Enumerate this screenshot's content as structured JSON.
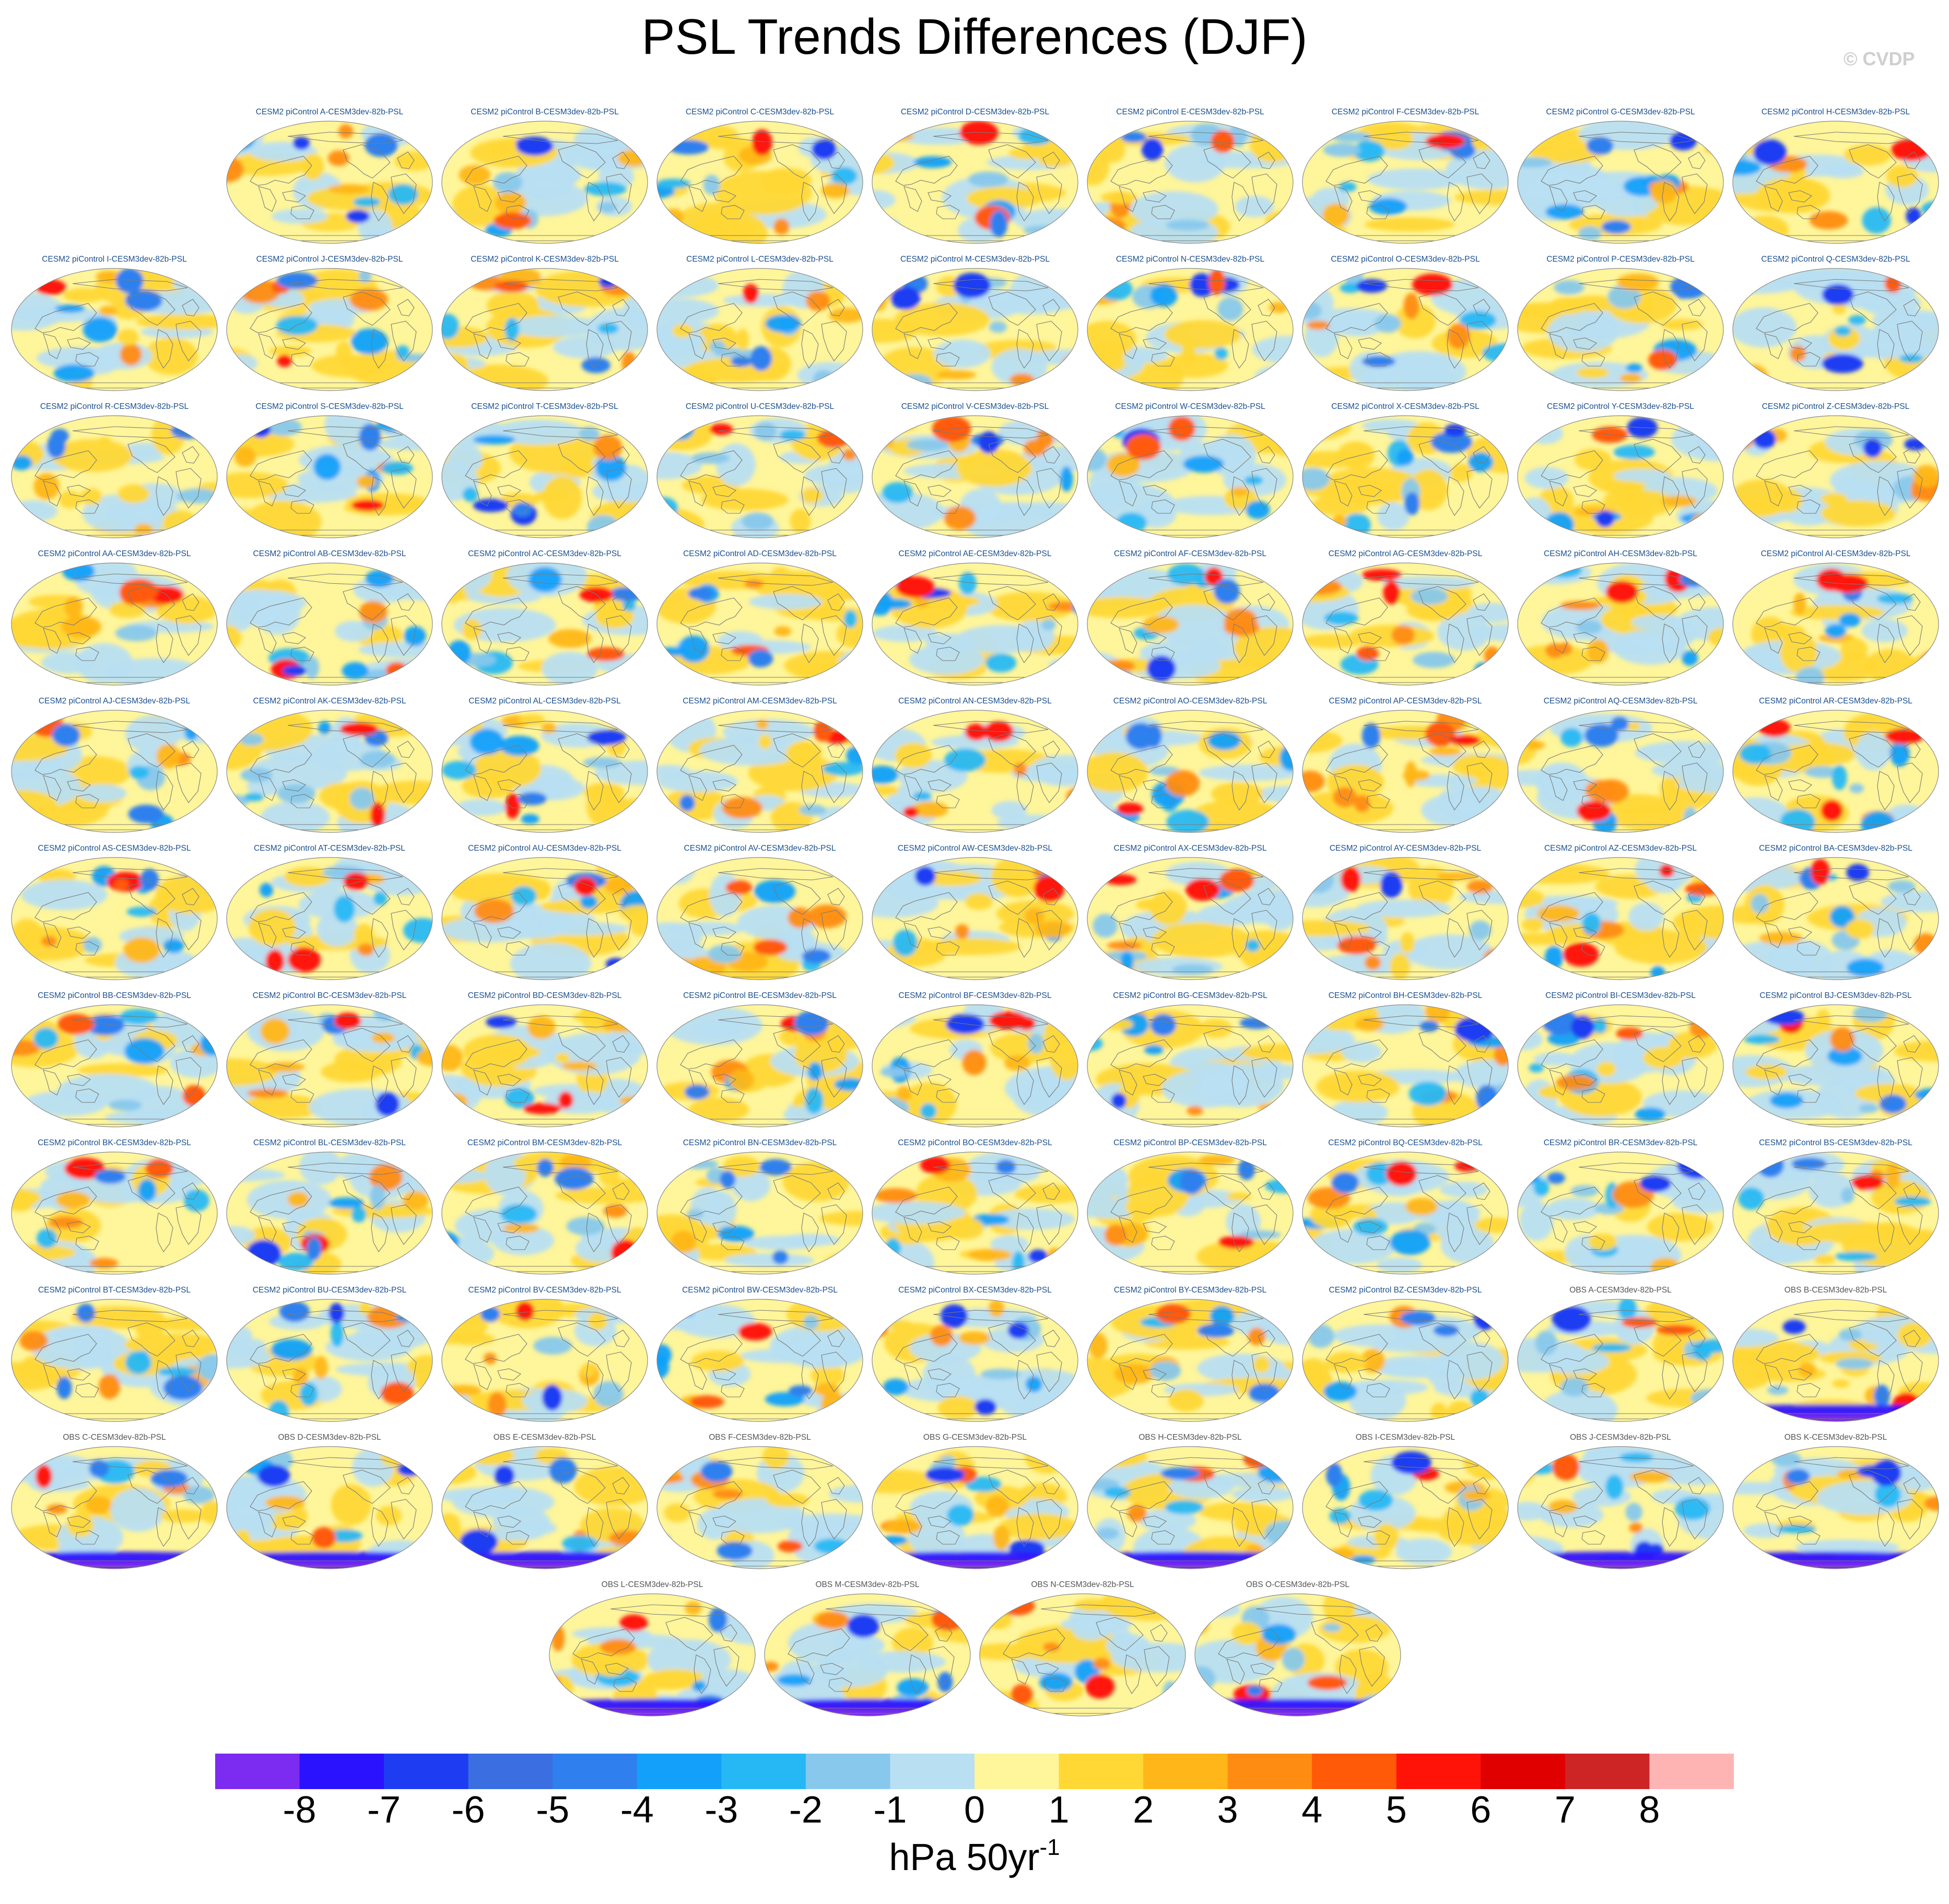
{
  "title": "PSL Trends Differences (DJF)",
  "watermark": "© CVDP",
  "colors": {
    "page_bg": "#ffffff",
    "model_label": "#1b4f8f",
    "obs_label": "#555555",
    "continent_outline": "#7a7a7a"
  },
  "chart_data": {
    "type": "heatmap",
    "description_variable": "Sea level pressure (PSL) trend differences, DJF",
    "projection": "global ellipse maps",
    "panels": [
      {
        "label": "CESM2 piControl A-CESM3dev-82b-PSL",
        "kind": "model"
      },
      {
        "label": "CESM2 piControl B-CESM3dev-82b-PSL",
        "kind": "model"
      },
      {
        "label": "CESM2 piControl C-CESM3dev-82b-PSL",
        "kind": "model"
      },
      {
        "label": "CESM2 piControl D-CESM3dev-82b-PSL",
        "kind": "model"
      },
      {
        "label": "CESM2 piControl E-CESM3dev-82b-PSL",
        "kind": "model"
      },
      {
        "label": "CESM2 piControl F-CESM3dev-82b-PSL",
        "kind": "model"
      },
      {
        "label": "CESM2 piControl G-CESM3dev-82b-PSL",
        "kind": "model"
      },
      {
        "label": "CESM2 piControl H-CESM3dev-82b-PSL",
        "kind": "model"
      },
      {
        "label": "CESM2 piControl I-CESM3dev-82b-PSL",
        "kind": "model"
      },
      {
        "label": "CESM2 piControl J-CESM3dev-82b-PSL",
        "kind": "model"
      },
      {
        "label": "CESM2 piControl K-CESM3dev-82b-PSL",
        "kind": "model"
      },
      {
        "label": "CESM2 piControl L-CESM3dev-82b-PSL",
        "kind": "model"
      },
      {
        "label": "CESM2 piControl M-CESM3dev-82b-PSL",
        "kind": "model"
      },
      {
        "label": "CESM2 piControl N-CESM3dev-82b-PSL",
        "kind": "model"
      },
      {
        "label": "CESM2 piControl O-CESM3dev-82b-PSL",
        "kind": "model"
      },
      {
        "label": "CESM2 piControl P-CESM3dev-82b-PSL",
        "kind": "model"
      },
      {
        "label": "CESM2 piControl Q-CESM3dev-82b-PSL",
        "kind": "model"
      },
      {
        "label": "CESM2 piControl R-CESM3dev-82b-PSL",
        "kind": "model"
      },
      {
        "label": "CESM2 piControl S-CESM3dev-82b-PSL",
        "kind": "model"
      },
      {
        "label": "CESM2 piControl T-CESM3dev-82b-PSL",
        "kind": "model"
      },
      {
        "label": "CESM2 piControl U-CESM3dev-82b-PSL",
        "kind": "model"
      },
      {
        "label": "CESM2 piControl V-CESM3dev-82b-PSL",
        "kind": "model"
      },
      {
        "label": "CESM2 piControl W-CESM3dev-82b-PSL",
        "kind": "model"
      },
      {
        "label": "CESM2 piControl X-CESM3dev-82b-PSL",
        "kind": "model"
      },
      {
        "label": "CESM2 piControl Y-CESM3dev-82b-PSL",
        "kind": "model"
      },
      {
        "label": "CESM2 piControl Z-CESM3dev-82b-PSL",
        "kind": "model"
      },
      {
        "label": "CESM2 piControl AA-CESM3dev-82b-PSL",
        "kind": "model"
      },
      {
        "label": "CESM2 piControl AB-CESM3dev-82b-PSL",
        "kind": "model"
      },
      {
        "label": "CESM2 piControl AC-CESM3dev-82b-PSL",
        "kind": "model"
      },
      {
        "label": "CESM2 piControl AD-CESM3dev-82b-PSL",
        "kind": "model"
      },
      {
        "label": "CESM2 piControl AE-CESM3dev-82b-PSL",
        "kind": "model"
      },
      {
        "label": "CESM2 piControl AF-CESM3dev-82b-PSL",
        "kind": "model"
      },
      {
        "label": "CESM2 piControl AG-CESM3dev-82b-PSL",
        "kind": "model"
      },
      {
        "label": "CESM2 piControl AH-CESM3dev-82b-PSL",
        "kind": "model"
      },
      {
        "label": "CESM2 piControl AI-CESM3dev-82b-PSL",
        "kind": "model"
      },
      {
        "label": "CESM2 piControl AJ-CESM3dev-82b-PSL",
        "kind": "model"
      },
      {
        "label": "CESM2 piControl AK-CESM3dev-82b-PSL",
        "kind": "model"
      },
      {
        "label": "CESM2 piControl AL-CESM3dev-82b-PSL",
        "kind": "model"
      },
      {
        "label": "CESM2 piControl AM-CESM3dev-82b-PSL",
        "kind": "model"
      },
      {
        "label": "CESM2 piControl AN-CESM3dev-82b-PSL",
        "kind": "model"
      },
      {
        "label": "CESM2 piControl AO-CESM3dev-82b-PSL",
        "kind": "model"
      },
      {
        "label": "CESM2 piControl AP-CESM3dev-82b-PSL",
        "kind": "model"
      },
      {
        "label": "CESM2 piControl AQ-CESM3dev-82b-PSL",
        "kind": "model"
      },
      {
        "label": "CESM2 piControl AR-CESM3dev-82b-PSL",
        "kind": "model"
      },
      {
        "label": "CESM2 piControl AS-CESM3dev-82b-PSL",
        "kind": "model"
      },
      {
        "label": "CESM2 piControl AT-CESM3dev-82b-PSL",
        "kind": "model"
      },
      {
        "label": "CESM2 piControl AU-CESM3dev-82b-PSL",
        "kind": "model"
      },
      {
        "label": "CESM2 piControl AV-CESM3dev-82b-PSL",
        "kind": "model"
      },
      {
        "label": "CESM2 piControl AW-CESM3dev-82b-PSL",
        "kind": "model"
      },
      {
        "label": "CESM2 piControl AX-CESM3dev-82b-PSL",
        "kind": "model"
      },
      {
        "label": "CESM2 piControl AY-CESM3dev-82b-PSL",
        "kind": "model"
      },
      {
        "label": "CESM2 piControl AZ-CESM3dev-82b-PSL",
        "kind": "model"
      },
      {
        "label": "CESM2 piControl BA-CESM3dev-82b-PSL",
        "kind": "model"
      },
      {
        "label": "CESM2 piControl BB-CESM3dev-82b-PSL",
        "kind": "model"
      },
      {
        "label": "CESM2 piControl BC-CESM3dev-82b-PSL",
        "kind": "model"
      },
      {
        "label": "CESM2 piControl BD-CESM3dev-82b-PSL",
        "kind": "model"
      },
      {
        "label": "CESM2 piControl BE-CESM3dev-82b-PSL",
        "kind": "model"
      },
      {
        "label": "CESM2 piControl BF-CESM3dev-82b-PSL",
        "kind": "model"
      },
      {
        "label": "CESM2 piControl BG-CESM3dev-82b-PSL",
        "kind": "model"
      },
      {
        "label": "CESM2 piControl BH-CESM3dev-82b-PSL",
        "kind": "model"
      },
      {
        "label": "CESM2 piControl BI-CESM3dev-82b-PSL",
        "kind": "model"
      },
      {
        "label": "CESM2 piControl BJ-CESM3dev-82b-PSL",
        "kind": "model"
      },
      {
        "label": "CESM2 piControl BK-CESM3dev-82b-PSL",
        "kind": "model"
      },
      {
        "label": "CESM2 piControl BL-CESM3dev-82b-PSL",
        "kind": "model"
      },
      {
        "label": "CESM2 piControl BM-CESM3dev-82b-PSL",
        "kind": "model"
      },
      {
        "label": "CESM2 piControl BN-CESM3dev-82b-PSL",
        "kind": "model"
      },
      {
        "label": "CESM2 piControl BO-CESM3dev-82b-PSL",
        "kind": "model"
      },
      {
        "label": "CESM2 piControl BP-CESM3dev-82b-PSL",
        "kind": "model"
      },
      {
        "label": "CESM2 piControl BQ-CESM3dev-82b-PSL",
        "kind": "model"
      },
      {
        "label": "CESM2 piControl BR-CESM3dev-82b-PSL",
        "kind": "model"
      },
      {
        "label": "CESM2 piControl BS-CESM3dev-82b-PSL",
        "kind": "model"
      },
      {
        "label": "CESM2 piControl BT-CESM3dev-82b-PSL",
        "kind": "model"
      },
      {
        "label": "CESM2 piControl BU-CESM3dev-82b-PSL",
        "kind": "model"
      },
      {
        "label": "CESM2 piControl BV-CESM3dev-82b-PSL",
        "kind": "model"
      },
      {
        "label": "CESM2 piControl BW-CESM3dev-82b-PSL",
        "kind": "model"
      },
      {
        "label": "CESM2 piControl BX-CESM3dev-82b-PSL",
        "kind": "model"
      },
      {
        "label": "CESM2 piControl BY-CESM3dev-82b-PSL",
        "kind": "model"
      },
      {
        "label": "CESM2 piControl BZ-CESM3dev-82b-PSL",
        "kind": "model"
      },
      {
        "label": "OBS A-CESM3dev-82b-PSL",
        "kind": "obs"
      },
      {
        "label": "OBS B-CESM3dev-82b-PSL",
        "kind": "obs"
      },
      {
        "label": "OBS C-CESM3dev-82b-PSL",
        "kind": "obs"
      },
      {
        "label": "OBS D-CESM3dev-82b-PSL",
        "kind": "obs"
      },
      {
        "label": "OBS E-CESM3dev-82b-PSL",
        "kind": "obs"
      },
      {
        "label": "OBS F-CESM3dev-82b-PSL",
        "kind": "obs"
      },
      {
        "label": "OBS G-CESM3dev-82b-PSL",
        "kind": "obs"
      },
      {
        "label": "OBS H-CESM3dev-82b-PSL",
        "kind": "obs"
      },
      {
        "label": "OBS I-CESM3dev-82b-PSL",
        "kind": "obs"
      },
      {
        "label": "OBS J-CESM3dev-82b-PSL",
        "kind": "obs"
      },
      {
        "label": "OBS K-CESM3dev-82b-PSL",
        "kind": "obs"
      },
      {
        "label": "OBS L-CESM3dev-82b-PSL",
        "kind": "obs"
      },
      {
        "label": "OBS M-CESM3dev-82b-PSL",
        "kind": "obs"
      },
      {
        "label": "OBS N-CESM3dev-82b-PSL",
        "kind": "obs"
      },
      {
        "label": "OBS O-CESM3dev-82b-PSL",
        "kind": "obs"
      }
    ],
    "row_counts": [
      8,
      9,
      9,
      9,
      9,
      9,
      9,
      9,
      9,
      9,
      4
    ],
    "colorbar": {
      "ticks": [
        "-8",
        "-7",
        "-6",
        "-5",
        "-4",
        "-3",
        "-2",
        "-1",
        "0",
        "1",
        "2",
        "3",
        "4",
        "5",
        "6",
        "7",
        "8"
      ],
      "tick_values": [
        -8,
        -7,
        -6,
        -5,
        -4,
        -3,
        -2,
        -1,
        0,
        1,
        2,
        3,
        4,
        5,
        6,
        7,
        8
      ],
      "colors": [
        "#7b2cf0",
        "#2a12ff",
        "#1e3cf2",
        "#3b6ee0",
        "#2f80ee",
        "#12a0fa",
        "#26b8f4",
        "#88c8ec",
        "#b8dff2",
        "#fff59a",
        "#ffd835",
        "#ffb618",
        "#ff8c12",
        "#ff5a08",
        "#ff1208",
        "#e00000",
        "#cd2426",
        "#ffb4b4"
      ],
      "units": "hPa 50yr",
      "units_exponent": "-1"
    }
  }
}
